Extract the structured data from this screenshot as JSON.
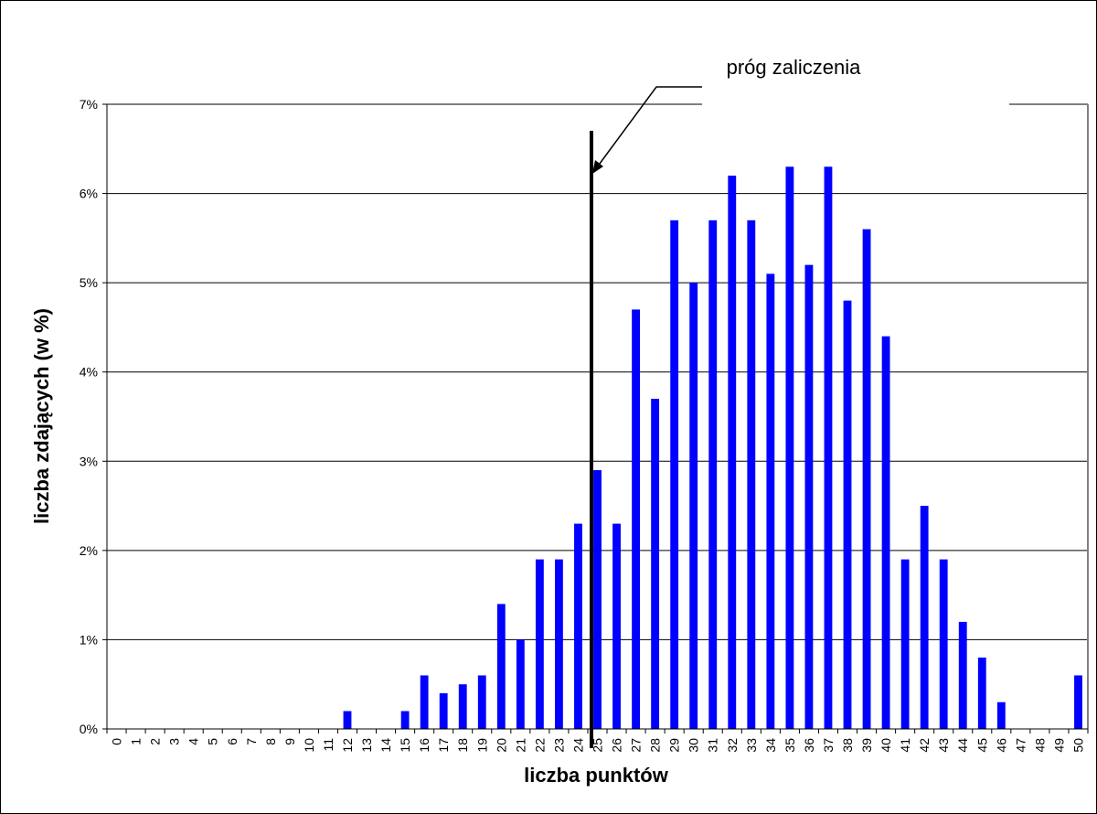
{
  "chart_data": {
    "type": "bar",
    "xlabel": "liczba punktów",
    "ylabel": "liczba zdających (w %)",
    "ylim": [
      0,
      7
    ],
    "yticks": [
      "0%",
      "1%",
      "2%",
      "3%",
      "4%",
      "5%",
      "6%",
      "7%"
    ],
    "grid": true,
    "legend": "none",
    "categories": [
      "0",
      "1",
      "2",
      "3",
      "4",
      "5",
      "6",
      "7",
      "8",
      "9",
      "10",
      "11",
      "12",
      "13",
      "14",
      "15",
      "16",
      "17",
      "18",
      "19",
      "20",
      "21",
      "22",
      "23",
      "24",
      "25",
      "26",
      "27",
      "28",
      "29",
      "30",
      "31",
      "32",
      "33",
      "34",
      "35",
      "36",
      "37",
      "38",
      "39",
      "40",
      "41",
      "42",
      "43",
      "44",
      "45",
      "46",
      "47",
      "48",
      "49",
      "50"
    ],
    "values": [
      0,
      0,
      0,
      0,
      0,
      0,
      0,
      0,
      0,
      0,
      0,
      0,
      0.2,
      0,
      0,
      0.2,
      0.6,
      0.4,
      0.5,
      0.6,
      1.4,
      1.0,
      1.9,
      1.9,
      2.3,
      2.9,
      2.3,
      4.7,
      3.7,
      5.7,
      5.0,
      5.7,
      6.2,
      5.7,
      5.1,
      6.3,
      5.2,
      6.3,
      4.8,
      5.6,
      4.4,
      1.9,
      2.5,
      1.9,
      1.2,
      0.8,
      0.3,
      0,
      0,
      0,
      0.6
    ],
    "threshold": {
      "label": "próg zaliczenia",
      "x": 25
    },
    "colors": {
      "bar": "#0000ff",
      "grid": "#000000",
      "plot_border": "#808080"
    }
  }
}
